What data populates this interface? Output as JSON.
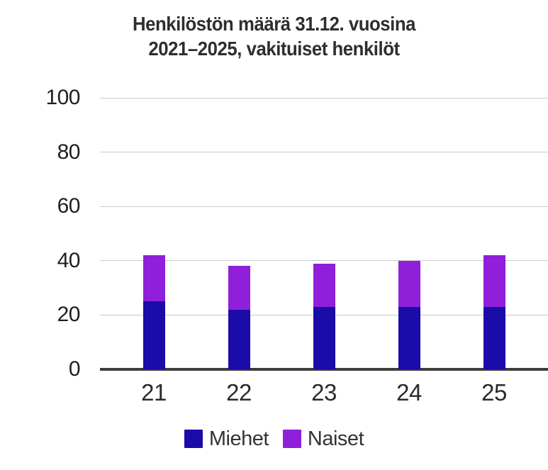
{
  "chart_data": {
    "type": "bar",
    "stacked": true,
    "title": "Henkilöstön määrä 31.12. vuosina 2021–2025, vakituiset henkilöt",
    "title_lines": [
      "Henkilöstön määrä 31.12. vuosina",
      "2021–2025, vakituiset henkilöt"
    ],
    "categories": [
      "21",
      "22",
      "23",
      "24",
      "25"
    ],
    "series": [
      {
        "name": "Miehet",
        "color": "#1b0ba8",
        "values": [
          25,
          22,
          23,
          23,
          23
        ]
      },
      {
        "name": "Naiset",
        "color": "#8f1fd9",
        "values": [
          17,
          16,
          16,
          17,
          19
        ]
      }
    ],
    "totals": [
      42,
      38,
      39,
      40,
      42
    ],
    "xlabel": "",
    "ylabel": "",
    "ylim": [
      0,
      100
    ],
    "yticks": [
      0,
      20,
      40,
      60,
      80,
      100
    ],
    "grid": true,
    "legend_position": "bottom",
    "colors": {
      "grid": "#c9c9c9",
      "axis_line": "#3d3d3d",
      "title_text": "#2e2e2e",
      "tick_text": "#1f1f1f",
      "legend_text": "#333333"
    }
  }
}
